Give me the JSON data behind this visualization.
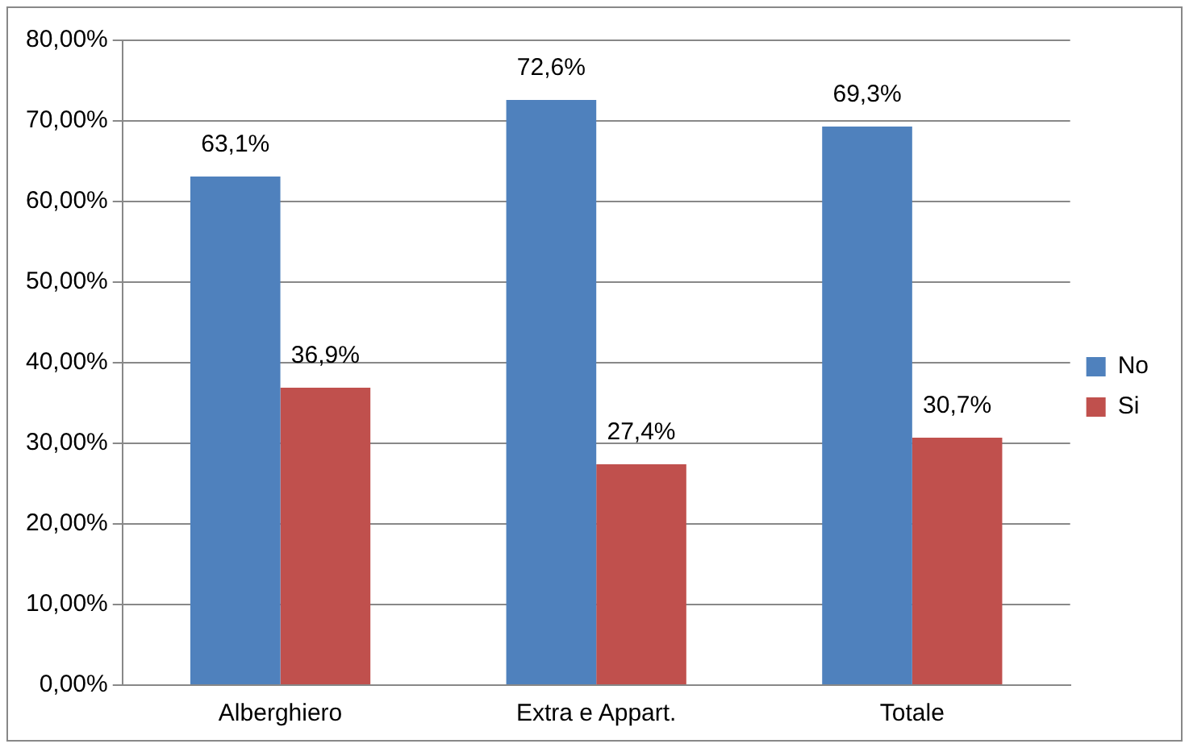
{
  "chart_data": {
    "type": "bar",
    "categories": [
      "Alberghiero",
      "Extra e Appart.",
      "Totale"
    ],
    "series": [
      {
        "name": "No",
        "color": "#4f81bd",
        "values": [
          63.1,
          72.6,
          69.3
        ],
        "value_labels": [
          "63,1%",
          "72,6%",
          "69,3%"
        ]
      },
      {
        "name": "Si",
        "color": "#c0504d",
        "values": [
          36.9,
          27.4,
          30.7
        ],
        "value_labels": [
          "36,9%",
          "27,4%",
          "30,7%"
        ]
      }
    ],
    "ylim": [
      0,
      80
    ],
    "yticks": [
      {
        "value": 0,
        "label": "0,00%"
      },
      {
        "value": 10,
        "label": "10,00%"
      },
      {
        "value": 20,
        "label": "20,00%"
      },
      {
        "value": 30,
        "label": "30,00%"
      },
      {
        "value": 40,
        "label": "40,00%"
      },
      {
        "value": 50,
        "label": "50,00%"
      },
      {
        "value": 60,
        "label": "60,00%"
      },
      {
        "value": 70,
        "label": "70,00%"
      },
      {
        "value": 80,
        "label": "80,00%"
      }
    ],
    "grid": "y",
    "legend": "right"
  }
}
